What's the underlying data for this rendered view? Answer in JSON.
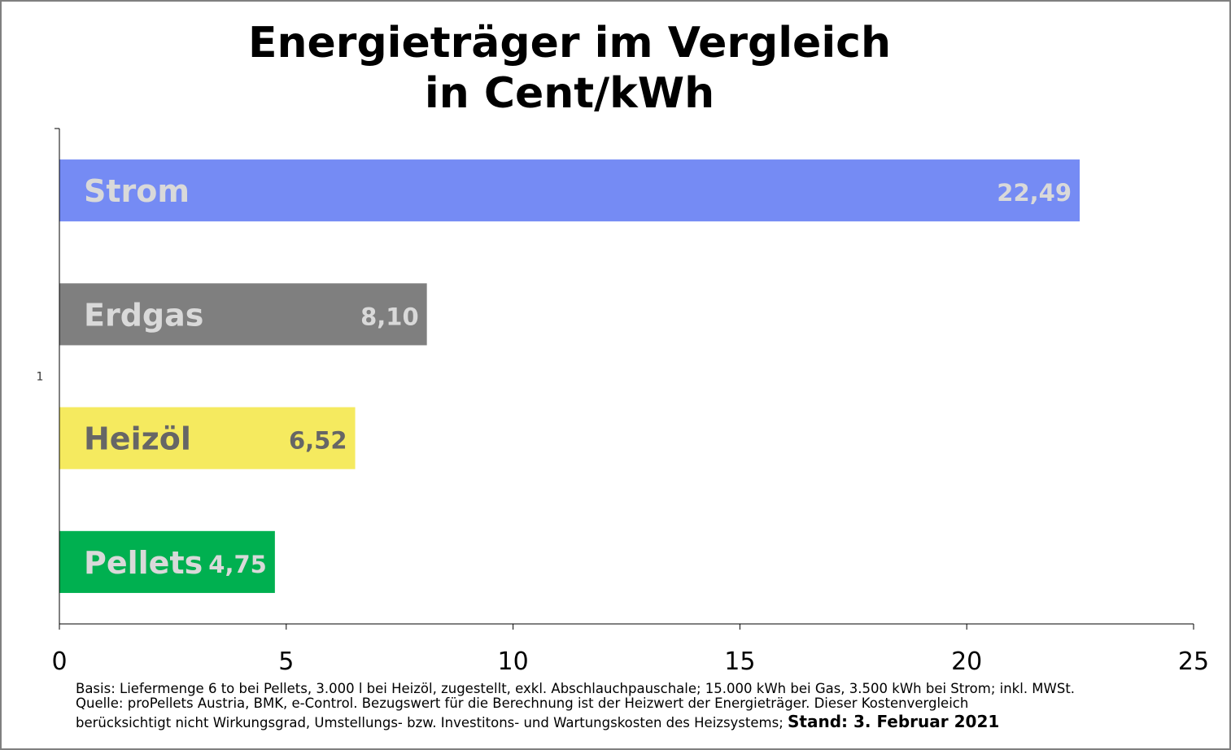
{
  "chart_data": {
    "type": "bar",
    "orientation": "horizontal",
    "title": "Energieträger im Vergleich",
    "subtitle": "in Cent/kWh",
    "category_axis_label": "1",
    "categories": [
      "Strom",
      "Erdgas",
      "Heizöl",
      "Pellets"
    ],
    "values": [
      22.49,
      8.1,
      6.52,
      4.75
    ],
    "value_labels": [
      "22,49",
      "8,10",
      "6,52",
      "4,75"
    ],
    "colors": [
      "#758bf4",
      "#7f7f7f",
      "#f5ea5f",
      "#00b050"
    ],
    "label_colors": [
      "#d9d9d9",
      "#d9d9d9",
      "#666666",
      "#d9d9d9"
    ],
    "xlim": [
      0,
      25
    ],
    "xticks": [
      "0",
      "5",
      "10",
      "15",
      "20",
      "25"
    ],
    "grid": false,
    "legend": "none"
  },
  "footnote": {
    "line1": "Basis: Liefermenge 6 to bei Pellets, 3.000 l bei Heizöl, zugestellt, exkl. Abschlauchpauschale; 15.000 kWh bei Gas, 3.500 kWh bei Strom; inkl. MWSt.",
    "line2": "Quelle: proPellets Austria, BMK, e-Control. Bezugswert für die Berechnung ist der Heizwert der Energieträger. Dieser Kostenvergleich",
    "line3": "berücksichtigt nicht Wirkungsgrad, Umstellungs- bzw. Investitons- und Wartungskosten des Heizsystems;",
    "stand": "Stand: 3. Februar 2021"
  }
}
